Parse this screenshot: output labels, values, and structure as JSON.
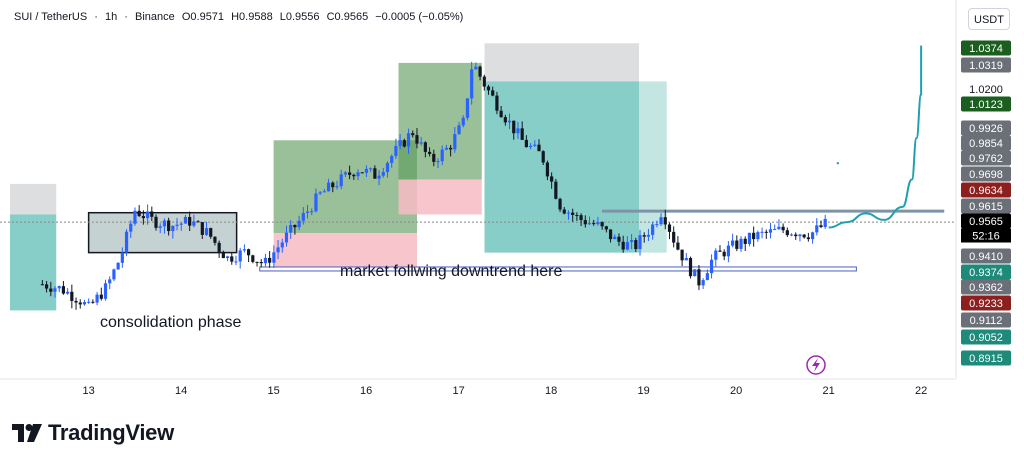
{
  "header": {
    "symbol": "SUI / TetherUS",
    "interval": "1h",
    "exchange": "Binance",
    "open": "O0.9571",
    "high": "H0.9588",
    "low": "L0.9556",
    "close": "C0.9565",
    "change": "−0.0005 (−0.05%)"
  },
  "currency": "USDT",
  "brand": {
    "name": "TradingView"
  },
  "colors": {
    "up": "#2962ff",
    "down": "#131722",
    "green_box": "#5a9a5a",
    "teal_box": "#26a69a",
    "red_box": "#f8bbc4",
    "gray_box": "#d9dadc",
    "forecast_line": "#1fa0b0",
    "price_label_bg": "#000000",
    "label_gray": "#6b6f78",
    "label_green": "#1b5e20",
    "label_teal": "#1d8a7a",
    "label_red": "#8e1f1f",
    "flash_icon": "#9c27b0"
  },
  "annotations": {
    "consolidation": "consolidation phase",
    "downtrend": "market follwing downtrend here"
  },
  "icon": "flash-icon",
  "chart_data": {
    "type": "candlestick",
    "title": "SUI / TetherUS",
    "x_tick_labels": [
      "13",
      "14",
      "15",
      "16",
      "17",
      "18",
      "19",
      "20",
      "21",
      "22"
    ],
    "ylim": [
      0.885,
      1.04
    ],
    "current_price": 0.9565,
    "countdown": "52:16",
    "price_axis_labels": [
      {
        "text": "1.0374",
        "style": "green"
      },
      {
        "text": "1.0319",
        "style": "gray"
      },
      {
        "text": "1.0200",
        "style": "plain"
      },
      {
        "text": "1.0123",
        "style": "green"
      },
      {
        "text": "0.9926",
        "style": "gray"
      },
      {
        "text": "0.9854",
        "style": "gray"
      },
      {
        "text": "0.9762",
        "style": "gray"
      },
      {
        "text": "0.9698",
        "style": "gray"
      },
      {
        "text": "0.9634",
        "style": "red"
      },
      {
        "text": "0.9615",
        "style": "gray"
      },
      {
        "text": "0.9565",
        "style": "black"
      },
      {
        "text": "0.9410",
        "style": "gray"
      },
      {
        "text": "0.9374",
        "style": "teal"
      },
      {
        "text": "0.9362",
        "style": "gray"
      },
      {
        "text": "0.9233",
        "style": "red"
      },
      {
        "text": "0.9112",
        "style": "gray"
      },
      {
        "text": "0.9052",
        "style": "teal"
      },
      {
        "text": "0.8915",
        "style": "teal"
      }
    ],
    "price_path": [
      [
        12.5,
        0.928
      ],
      [
        12.7,
        0.926
      ],
      [
        12.9,
        0.921
      ],
      [
        13.0,
        0.917
      ],
      [
        13.2,
        0.927
      ],
      [
        13.35,
        0.941
      ],
      [
        13.5,
        0.962
      ],
      [
        13.7,
        0.957
      ],
      [
        13.9,
        0.955
      ],
      [
        14.1,
        0.957
      ],
      [
        14.3,
        0.951
      ],
      [
        14.4,
        0.945
      ],
      [
        14.5,
        0.94
      ],
      [
        14.7,
        0.943
      ],
      [
        14.9,
        0.937
      ],
      [
        15.1,
        0.948
      ],
      [
        15.3,
        0.958
      ],
      [
        15.5,
        0.969
      ],
      [
        15.7,
        0.975
      ],
      [
        15.9,
        0.981
      ],
      [
        16.1,
        0.978
      ],
      [
        16.3,
        0.988
      ],
      [
        16.5,
        0.998
      ],
      [
        16.7,
        0.984
      ],
      [
        16.9,
        0.991
      ],
      [
        17.05,
        1.002
      ],
      [
        17.15,
        1.03
      ],
      [
        17.3,
        1.018
      ],
      [
        17.5,
        1.005
      ],
      [
        17.7,
        0.993
      ],
      [
        17.9,
        0.987
      ],
      [
        18.1,
        0.964
      ],
      [
        18.3,
        0.958
      ],
      [
        18.5,
        0.955
      ],
      [
        18.7,
        0.948
      ],
      [
        18.9,
        0.945
      ],
      [
        19.1,
        0.955
      ],
      [
        19.2,
        0.962
      ],
      [
        19.35,
        0.946
      ],
      [
        19.5,
        0.935
      ],
      [
        19.6,
        0.929
      ],
      [
        19.75,
        0.94
      ],
      [
        19.95,
        0.945
      ],
      [
        20.2,
        0.95
      ],
      [
        20.5,
        0.953
      ],
      [
        20.8,
        0.951
      ],
      [
        21.0,
        0.9565
      ]
    ],
    "zones": [
      {
        "kind": "gray",
        "x0": 12.15,
        "x1": 12.65,
        "y0": 0.974,
        "y1": 0.96
      },
      {
        "kind": "teal",
        "x0": 12.15,
        "x1": 12.65,
        "y0": 0.96,
        "y1": 0.916
      },
      {
        "kind": "consolidation",
        "x0": 13.0,
        "x1": 14.6,
        "y0": 0.9608,
        "y1": 0.9425
      },
      {
        "kind": "green",
        "x0": 15.0,
        "x1": 16.55,
        "y0": 0.994,
        "y1": 0.9515
      },
      {
        "kind": "red",
        "x0": 15.0,
        "x1": 16.55,
        "y0": 0.9515,
        "y1": 0.9345
      },
      {
        "kind": "green",
        "x0": 16.35,
        "x1": 17.25,
        "y0": 1.0295,
        "y1": 0.976
      },
      {
        "kind": "red",
        "x0": 16.35,
        "x1": 17.25,
        "y0": 0.976,
        "y1": 0.96
      },
      {
        "kind": "gray",
        "x0": 17.28,
        "x1": 18.95,
        "y0": 1.0385,
        "y1": 1.021
      },
      {
        "kind": "teal",
        "x0": 17.28,
        "x1": 18.95,
        "y0": 1.021,
        "y1": 0.9425
      },
      {
        "kind": "teal_light",
        "x0": 18.95,
        "x1": 19.25,
        "y0": 1.021,
        "y1": 0.9425
      }
    ],
    "levels": [
      {
        "kind": "resistance",
        "x0": 18.55,
        "x1": 22.25,
        "y": 0.9615
      },
      {
        "kind": "support",
        "x0": 14.85,
        "x1": 21.3,
        "y": 0.935
      }
    ],
    "forecast_path": [
      [
        21.0,
        0.954
      ],
      [
        21.2,
        0.9565
      ],
      [
        21.4,
        0.9605
      ],
      [
        21.6,
        0.9575
      ],
      [
        21.8,
        0.9635
      ],
      [
        21.9,
        0.976
      ],
      [
        21.95,
        0.995
      ],
      [
        22.0,
        1.015
      ],
      [
        22.0,
        1.0374
      ]
    ]
  }
}
